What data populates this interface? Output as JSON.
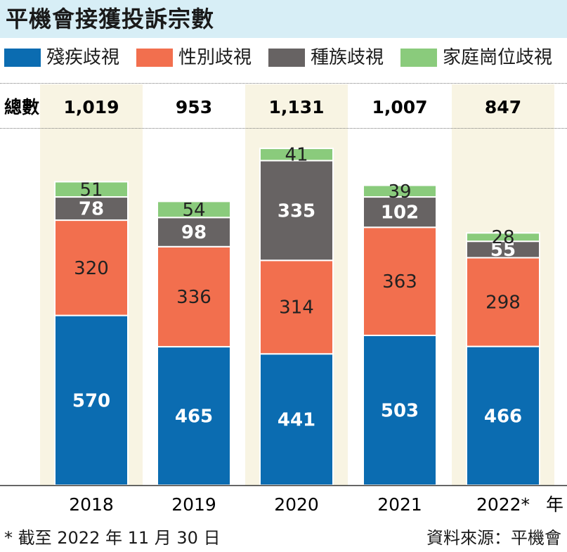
{
  "title": "平機會接獲投訴宗數",
  "legend": [
    {
      "name": "殘疾歧視",
      "color": "#0b6cb1"
    },
    {
      "name": "性別歧視",
      "color": "#f26f4e"
    },
    {
      "name": "種族歧視",
      "color": "#676363"
    },
    {
      "name": "家庭崗位歧視",
      "color": "#8acb7c"
    }
  ],
  "totals_label": "總數",
  "x_unit": "年",
  "footnote": "* 截至 2022 年 11 月 30 日",
  "source": "資料來源：平機會",
  "chart_data": {
    "type": "bar",
    "stacked": true,
    "categories": [
      "2018",
      "2019",
      "2020",
      "2021",
      "2022*"
    ],
    "series": [
      {
        "name": "殘疾歧視",
        "values": [
          570,
          465,
          441,
          503,
          466
        ],
        "color": "#0b6cb1",
        "label_color": "#ffffff",
        "label_bold": true
      },
      {
        "name": "性別歧視",
        "values": [
          320,
          336,
          314,
          363,
          298
        ],
        "color": "#f26f4e",
        "label_color": "#222222",
        "label_bold": false
      },
      {
        "name": "種族歧視",
        "values": [
          78,
          98,
          335,
          102,
          55
        ],
        "color": "#676363",
        "label_color": "#ffffff",
        "label_bold": true
      },
      {
        "name": "家庭崗位歧視",
        "values": [
          51,
          54,
          41,
          39,
          28
        ],
        "color": "#8acb7c",
        "label_color": "#222222",
        "label_bold": false
      }
    ],
    "totals": [
      "1,019",
      "953",
      "1,131",
      "1,007",
      "847"
    ],
    "band_color": "#f8f4e3",
    "ylim": [
      0,
      1145
    ]
  }
}
